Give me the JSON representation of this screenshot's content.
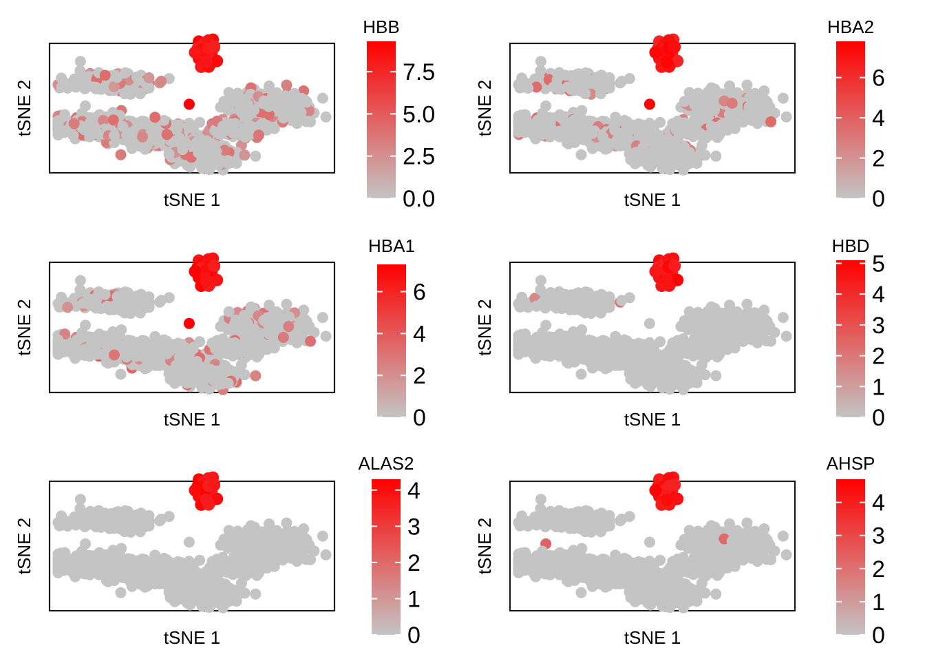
{
  "colors": {
    "low": "#C4C4C4",
    "high": "#FF0000",
    "frame": "#1a1a1a"
  },
  "chart_data": [
    {
      "type": "scatter",
      "title": "HBB",
      "xlabel": "tSNE 1",
      "ylabel": "tSNE 2",
      "colorbar": {
        "min": 0,
        "max": 9.3,
        "ticks": [
          "0.0",
          "2.5",
          "5.0",
          "7.5"
        ],
        "tick_values": [
          0,
          2.5,
          5.0,
          7.5
        ]
      },
      "background_expression": 3.5,
      "speckle_density": 0.22
    },
    {
      "type": "scatter",
      "title": "HBA2",
      "xlabel": "tSNE 1",
      "ylabel": "tSNE 2",
      "colorbar": {
        "min": 0,
        "max": 7.8,
        "ticks": [
          "0",
          "2",
          "4",
          "6"
        ],
        "tick_values": [
          0,
          2,
          4,
          6
        ]
      },
      "background_expression": 3.0,
      "speckle_density": 0.1
    },
    {
      "type": "scatter",
      "title": "HBA1",
      "xlabel": "tSNE 1",
      "ylabel": "tSNE 2",
      "colorbar": {
        "min": 0,
        "max": 7.3,
        "ticks": [
          "0",
          "2",
          "4",
          "6"
        ],
        "tick_values": [
          0,
          2,
          4,
          6
        ]
      },
      "background_expression": 3.0,
      "speckle_density": 0.08
    },
    {
      "type": "scatter",
      "title": "HBD",
      "xlabel": "tSNE 1",
      "ylabel": "tSNE 2",
      "colorbar": {
        "min": 0,
        "max": 5.1,
        "ticks": [
          "0",
          "1",
          "2",
          "3",
          "4",
          "5"
        ],
        "tick_values": [
          0,
          1,
          2,
          3,
          4,
          5
        ]
      },
      "background_expression": 2.0,
      "speckle_density": 0.003
    },
    {
      "type": "scatter",
      "title": "ALAS2",
      "xlabel": "tSNE 1",
      "ylabel": "tSNE 2",
      "colorbar": {
        "min": 0,
        "max": 4.3,
        "ticks": [
          "0",
          "1",
          "2",
          "3",
          "4"
        ],
        "tick_values": [
          0,
          1,
          2,
          3,
          4
        ]
      },
      "background_expression": 2.0,
      "speckle_density": 0.003
    },
    {
      "type": "scatter",
      "title": "AHSP",
      "xlabel": "tSNE 1",
      "ylabel": "tSNE 2",
      "colorbar": {
        "min": 0,
        "max": 4.7,
        "ticks": [
          "0",
          "1",
          "2",
          "3",
          "4"
        ],
        "tick_values": [
          0,
          1,
          2,
          3,
          4
        ]
      },
      "background_expression": 2.0,
      "speckle_density": 0.003
    }
  ]
}
